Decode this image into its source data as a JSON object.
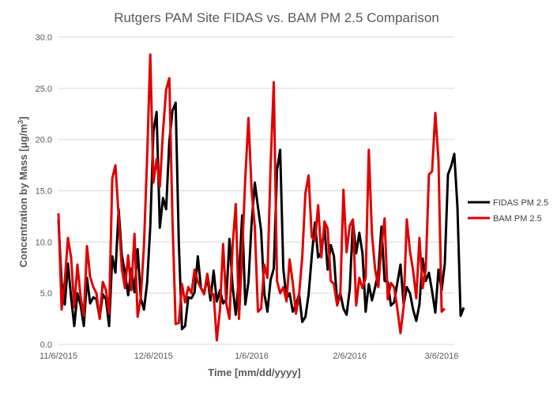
{
  "chart_data": {
    "type": "line",
    "title": "Rutgers PAM Site FIDAS vs. BAM PM 2.5 Comparison",
    "xlabel": "Time [mm/dd/yyyy]",
    "ylabel_main": "Concentration by Mass [µg/m",
    "ylabel_sup": "3",
    "ylabel_end": "]",
    "xlim": [
      "11/6/2015",
      "3/10/2016"
    ],
    "ylim": [
      0,
      30
    ],
    "yticks": [
      "0.0",
      "5.0",
      "10.0",
      "15.0",
      "20.0",
      "25.0",
      "30.0"
    ],
    "xticks": [
      {
        "date": "11/6/2015",
        "label": "11/6/2015"
      },
      {
        "date": "12/6/2015",
        "label": "12/6/2015"
      },
      {
        "date": "1/6/2016",
        "label": "1/6/2016"
      },
      {
        "date": "2/6/2016",
        "label": "2/6/2016"
      },
      {
        "date": "3/6/2016",
        "label": "3/6/2016"
      }
    ],
    "grid": "horizontal",
    "legend_position": "right",
    "series": [
      {
        "name": "FIDAS PM 2.5",
        "color": "#000000",
        "start_date": "11/6/2015",
        "values": [
          12.1,
          6.0,
          3.9,
          7.9,
          4.6,
          1.8,
          5.0,
          3.8,
          1.8,
          6.5,
          4.0,
          4.6,
          4.4,
          2.6,
          4.9,
          4.4,
          1.8,
          8.6,
          7.0,
          13.2,
          8.7,
          7.0,
          4.8,
          7.4,
          5.1,
          9.3,
          4.5,
          3.4,
          6.0,
          11.5,
          20.8,
          22.7,
          11.4,
          14.3,
          13.2,
          19.8,
          22.8,
          23.6,
          10.0,
          1.5,
          1.8,
          4.6,
          4.5,
          5.1,
          8.6,
          5.5,
          5.0,
          6.6,
          4.3,
          7.2,
          4.2,
          5.3,
          4.0,
          4.4,
          10.3,
          5.7,
          2.9,
          6.5,
          12.6,
          3.9,
          6.1,
          11.9,
          15.8,
          13.4,
          11.1,
          5.0,
          3.2,
          6.3,
          7.4,
          17.0,
          19.0,
          7.4,
          4.5,
          5.0,
          3.2,
          3.9,
          4.9,
          2.2,
          2.7,
          4.9,
          8.6,
          11.9,
          8.5,
          9.0,
          11.5,
          7.3,
          9.7,
          8.6,
          4.1,
          5.0,
          3.5,
          2.9,
          5.4,
          12.0,
          8.9,
          10.9,
          8.9,
          3.2,
          5.9,
          4.3,
          5.6,
          7.0,
          11.5,
          6.2,
          6.1,
          3.8,
          4.1,
          6.0,
          7.8,
          3.9,
          5.6,
          5.0,
          3.4,
          2.3,
          3.9,
          8.4,
          6.2,
          7.0,
          5.2,
          3.1,
          7.3,
          5.3,
          7.9,
          16.6,
          17.4,
          18.6,
          13.4,
          2.8,
          3.6
        ]
      },
      {
        "name": "BAM PM 2.5",
        "color": "#e00000",
        "start_date": "11/6/2015",
        "values": [
          12.8,
          3.4,
          6.2,
          10.4,
          8.5,
          3.6,
          7.8,
          4.6,
          2.8,
          9.6,
          6.6,
          5.6,
          5.0,
          2.5,
          6.1,
          5.3,
          3.0,
          16.2,
          17.5,
          12.5,
          7.4,
          5.5,
          8.7,
          5.3,
          10.8,
          2.7,
          4.6,
          9.6,
          18.2,
          28.3,
          15.8,
          18.1,
          15.4,
          20.8,
          24.9,
          26.0,
          12.2,
          2.0,
          2.1,
          5.9,
          4.1,
          5.6,
          5.0,
          7.3,
          6.1,
          5.5,
          4.9,
          6.9,
          5.0,
          4.9,
          0.4,
          3.4,
          9.8,
          4.0,
          2.5,
          9.6,
          13.7,
          2.5,
          9.0,
          16.3,
          22.1,
          15.0,
          11.5,
          3.2,
          3.5,
          7.8,
          6.5,
          17.4,
          25.6,
          6.2,
          5.0,
          5.6,
          4.2,
          8.3,
          6.0,
          3.0,
          4.9,
          8.6,
          14.8,
          16.5,
          10.5,
          10.1,
          13.6,
          8.5,
          12.0,
          11.3,
          6.2,
          5.9,
          3.8,
          4.8,
          15.1,
          9.0,
          11.6,
          12.2,
          3.8,
          6.5,
          5.5,
          6.5,
          19.0,
          10.8,
          7.3,
          5.6,
          9.6,
          12.3,
          4.4,
          6.0,
          5.6,
          3.5,
          1.1,
          3.7,
          12.2,
          9.1,
          7.2,
          4.5,
          10.4,
          5.5,
          7.3,
          16.6,
          16.9,
          22.6,
          18.0,
          3.2,
          3.5
        ]
      }
    ]
  }
}
